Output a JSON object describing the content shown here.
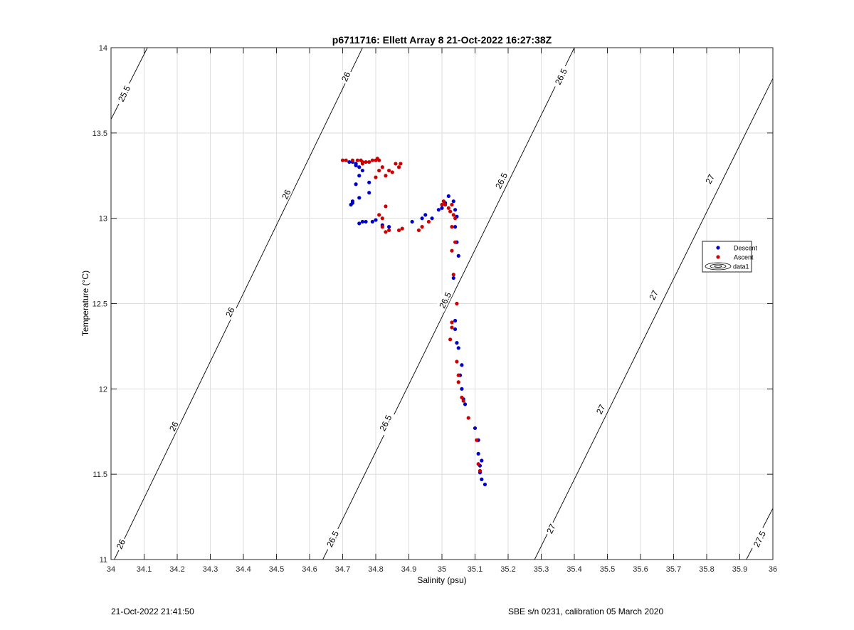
{
  "chart_data": {
    "type": "scatter",
    "title": "p6711716: Ellett Array 8 21-Oct-2022 16:27:38Z",
    "xlabel": "Salinity (psu)",
    "ylabel": "Temperature (°C)",
    "xlim": [
      34,
      36
    ],
    "ylim": [
      11,
      14
    ],
    "grid": true,
    "x_ticks": [
      "34",
      "34.1",
      "34.2",
      "34.3",
      "34.4",
      "34.5",
      "34.6",
      "34.7",
      "34.8",
      "34.9",
      "35",
      "35.1",
      "35.2",
      "35.3",
      "35.4",
      "35.5",
      "35.6",
      "35.7",
      "35.8",
      "35.9",
      "36"
    ],
    "y_ticks": [
      "11",
      "11.5",
      "12",
      "12.5",
      "13",
      "13.5",
      "14"
    ],
    "legend": {
      "position": "right",
      "entries": [
        "Descent",
        "Ascent",
        "data1"
      ]
    },
    "isopycnals": [
      {
        "label": "25.5",
        "points": [
          [
            34.0,
            13.58
          ],
          [
            34.11,
            14.0
          ]
        ],
        "labels_at": [
          [
            34.04,
            13.73
          ]
        ]
      },
      {
        "label": "26",
        "points": [
          [
            34.01,
            11.0
          ],
          [
            34.76,
            14.0
          ]
        ],
        "labels_at": [
          [
            34.03,
            11.09
          ],
          [
            34.19,
            11.78
          ],
          [
            34.36,
            12.45
          ],
          [
            34.53,
            13.14
          ],
          [
            34.71,
            13.83
          ]
        ]
      },
      {
        "label": "26.5",
        "points": [
          [
            34.64,
            11.0
          ],
          [
            35.4,
            14.0
          ]
        ],
        "labels_at": [
          [
            34.67,
            11.12
          ],
          [
            34.83,
            11.8
          ],
          [
            35.01,
            12.52
          ],
          [
            35.18,
            13.22
          ],
          [
            35.36,
            13.83
          ]
        ]
      },
      {
        "label": "27",
        "points": [
          [
            35.28,
            11.0
          ],
          [
            36.0,
            13.82
          ]
        ],
        "labels_at": [
          [
            35.33,
            11.18
          ],
          [
            35.48,
            11.88
          ],
          [
            35.64,
            12.55
          ],
          [
            35.81,
            13.23
          ]
        ]
      },
      {
        "label": "27.5",
        "points": [
          [
            35.92,
            11.0
          ],
          [
            36.0,
            11.3
          ]
        ],
        "labels_at": [
          [
            35.96,
            11.12
          ]
        ]
      }
    ],
    "series": [
      {
        "name": "Descent",
        "color": "#0000cc",
        "points": [
          [
            35.13,
            11.44
          ],
          [
            35.12,
            11.47
          ],
          [
            35.115,
            11.51
          ],
          [
            35.115,
            11.55
          ],
          [
            35.12,
            11.58
          ],
          [
            35.11,
            11.62
          ],
          [
            35.11,
            11.7
          ],
          [
            35.1,
            11.77
          ],
          [
            35.07,
            11.91
          ],
          [
            35.065,
            11.94
          ],
          [
            35.06,
            12.0
          ],
          [
            35.055,
            12.08
          ],
          [
            35.06,
            12.14
          ],
          [
            35.05,
            12.24
          ],
          [
            35.045,
            12.27
          ],
          [
            35.04,
            12.35
          ],
          [
            35.04,
            12.4
          ],
          [
            35.035,
            12.65
          ],
          [
            35.05,
            12.78
          ],
          [
            35.045,
            12.86
          ],
          [
            35.04,
            12.95
          ],
          [
            35.045,
            13.01
          ],
          [
            35.04,
            13.05
          ],
          [
            35.035,
            13.1
          ],
          [
            35.02,
            13.13
          ],
          [
            35.01,
            13.09
          ],
          [
            35.0,
            13.06
          ],
          [
            34.99,
            13.05
          ],
          [
            34.97,
            13.0
          ],
          [
            34.95,
            13.02
          ],
          [
            34.94,
            13.0
          ],
          [
            34.91,
            12.98
          ],
          [
            34.84,
            12.95
          ],
          [
            34.82,
            12.96
          ],
          [
            34.8,
            12.99
          ],
          [
            34.79,
            12.98
          ],
          [
            34.77,
            12.98
          ],
          [
            34.76,
            12.98
          ],
          [
            34.75,
            12.97
          ],
          [
            34.725,
            13.08
          ],
          [
            34.73,
            13.09
          ],
          [
            34.73,
            13.1
          ],
          [
            34.74,
            13.2
          ],
          [
            34.75,
            13.12
          ],
          [
            34.78,
            13.15
          ],
          [
            34.78,
            13.21
          ],
          [
            34.75,
            13.3
          ],
          [
            34.76,
            13.28
          ],
          [
            34.74,
            13.32
          ],
          [
            34.73,
            13.33
          ],
          [
            34.75,
            13.25
          ],
          [
            34.72,
            13.33
          ],
          [
            34.74,
            13.31
          ]
        ]
      },
      {
        "name": "Ascent",
        "color": "#cc0000",
        "points": [
          [
            35.115,
            11.52
          ],
          [
            35.11,
            11.56
          ],
          [
            35.105,
            11.7
          ],
          [
            35.08,
            11.83
          ],
          [
            35.065,
            11.93
          ],
          [
            35.06,
            11.95
          ],
          [
            35.05,
            12.04
          ],
          [
            35.05,
            12.08
          ],
          [
            35.045,
            12.16
          ],
          [
            35.025,
            12.29
          ],
          [
            35.03,
            12.36
          ],
          [
            35.03,
            12.39
          ],
          [
            35.045,
            12.5
          ],
          [
            35.035,
            12.67
          ],
          [
            35.03,
            12.81
          ],
          [
            35.04,
            12.86
          ],
          [
            35.03,
            12.95
          ],
          [
            35.04,
            13.0
          ],
          [
            35.035,
            13.02
          ],
          [
            35.025,
            13.04
          ],
          [
            35.03,
            13.08
          ],
          [
            35.02,
            13.06
          ],
          [
            35.01,
            13.08
          ],
          [
            35.005,
            13.1
          ],
          [
            35.0,
            13.08
          ],
          [
            34.96,
            12.98
          ],
          [
            34.94,
            12.95
          ],
          [
            34.93,
            12.93
          ],
          [
            34.88,
            12.94
          ],
          [
            34.87,
            12.93
          ],
          [
            34.84,
            12.93
          ],
          [
            34.83,
            12.92
          ],
          [
            34.82,
            12.95
          ],
          [
            34.82,
            13.0
          ],
          [
            34.81,
            13.02
          ],
          [
            34.83,
            13.07
          ],
          [
            34.8,
            13.24
          ],
          [
            34.81,
            13.28
          ],
          [
            34.82,
            13.3
          ],
          [
            34.83,
            13.25
          ],
          [
            34.84,
            13.28
          ],
          [
            34.85,
            13.27
          ],
          [
            34.86,
            13.32
          ],
          [
            34.87,
            13.3
          ],
          [
            34.875,
            13.32
          ],
          [
            34.7,
            13.34
          ],
          [
            34.71,
            13.34
          ],
          [
            34.73,
            13.34
          ],
          [
            34.745,
            13.34
          ],
          [
            34.755,
            13.34
          ],
          [
            34.76,
            13.33
          ],
          [
            34.77,
            13.33
          ],
          [
            34.78,
            13.33
          ],
          [
            34.79,
            13.34
          ],
          [
            34.8,
            13.34
          ],
          [
            34.805,
            13.35
          ],
          [
            34.81,
            13.34
          ],
          [
            34.76,
            13.32
          ]
        ]
      }
    ]
  },
  "footer": {
    "left": "21-Oct-2022 21:41:50",
    "right": "SBE s/n 0231, calibration 05 March 2020"
  }
}
